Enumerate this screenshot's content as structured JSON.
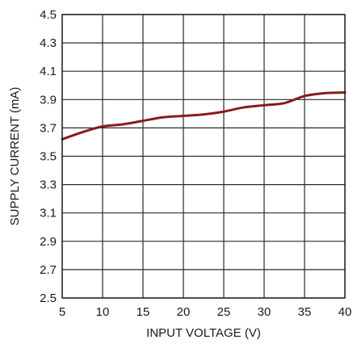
{
  "chart_data": {
    "type": "line",
    "title": "",
    "xlabel": "INPUT VOLTAGE (V)",
    "ylabel": "SUPPLY CURRENT (mA)",
    "xlim": [
      5,
      40
    ],
    "ylim": [
      2.5,
      4.5
    ],
    "x_ticks": [
      5,
      10,
      15,
      20,
      25,
      30,
      35,
      40
    ],
    "y_ticks": [
      "2.5",
      "2.7",
      "2.9",
      "3.1",
      "3.3",
      "3.5",
      "3.7",
      "3.9",
      "4.1",
      "4.3",
      "4.5"
    ],
    "grid": true,
    "series": [
      {
        "color": "#8b1a1a",
        "x": [
          5,
          7.5,
          10,
          12.5,
          15,
          17.5,
          20,
          22.5,
          25,
          27.5,
          30,
          32.5,
          35,
          37.5,
          40
        ],
        "y": [
          3.62,
          3.67,
          3.71,
          3.725,
          3.75,
          3.775,
          3.785,
          3.795,
          3.815,
          3.845,
          3.86,
          3.875,
          3.925,
          3.945,
          3.95
        ]
      }
    ]
  }
}
